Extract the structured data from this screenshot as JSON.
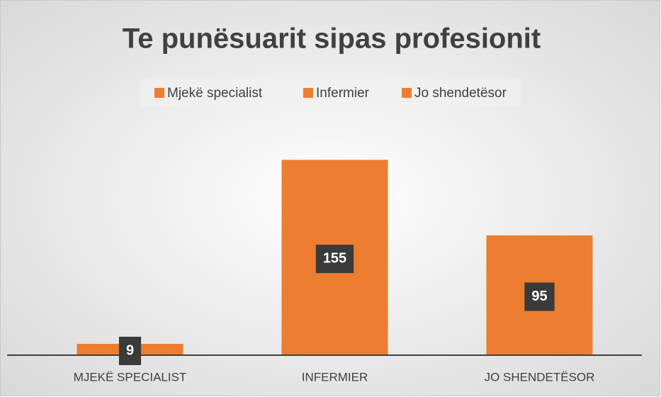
{
  "chart_data": {
    "type": "bar",
    "title": "Te punësuarit sipas profesionit",
    "categories": [
      "MJEKË SPECIALIST",
      "INFERMIER",
      "JO SHENDETËSOR"
    ],
    "legend": [
      "Mjekë specialist",
      "Infermier",
      "Jo shendetësor"
    ],
    "values": [
      9,
      155,
      95
    ],
    "color": "#ed7d31",
    "ylim": [
      0,
      180
    ],
    "data_labels": true
  }
}
